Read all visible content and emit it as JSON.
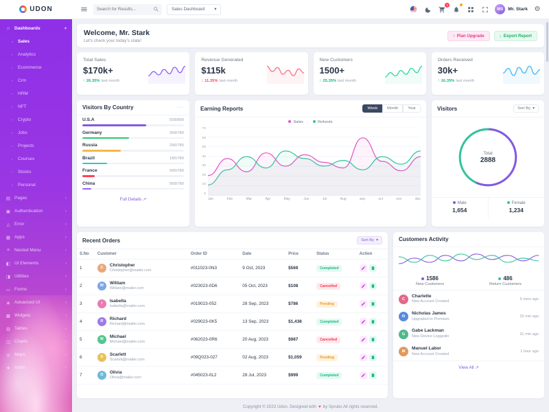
{
  "app": {
    "logo": "UDON"
  },
  "icons": {
    "sort_chevron": "▾",
    "more": "···",
    "link_arrow": "↗",
    "up": "↑",
    "down": "↓",
    "heart": "♥",
    "gear": "⚙"
  },
  "header": {
    "search_placeholder": "Search for Results...",
    "dashboard_select": "Sales Dashboard",
    "cart_badge": "1",
    "user_name": "Mr. Stark",
    "user_initials": "MS"
  },
  "sidebar": {
    "items": [
      {
        "label": "Dashboards",
        "glyph": "⌂",
        "type": "parent",
        "active": true,
        "expanded": true
      },
      {
        "label": "Sales",
        "glyph": "▫",
        "type": "sub",
        "active": true
      },
      {
        "label": "Analytics",
        "glyph": "▫",
        "type": "sub"
      },
      {
        "label": "Ecommerce",
        "glyph": "▫",
        "type": "sub"
      },
      {
        "label": "Crm",
        "glyph": "▫",
        "type": "sub"
      },
      {
        "label": "HRM",
        "glyph": "▫",
        "type": "sub"
      },
      {
        "label": "NFT",
        "glyph": "▫",
        "type": "sub"
      },
      {
        "label": "Crypto",
        "glyph": "▫",
        "type": "sub"
      },
      {
        "label": "Jobs",
        "glyph": "▫",
        "type": "sub"
      },
      {
        "label": "Projects",
        "glyph": "▫",
        "type": "sub"
      },
      {
        "label": "Courses",
        "glyph": "▫",
        "type": "sub"
      },
      {
        "label": "Stocks",
        "glyph": "▫",
        "type": "sub"
      },
      {
        "label": "Personal",
        "glyph": "▫",
        "type": "sub"
      },
      {
        "label": "Pages",
        "glyph": "▤",
        "type": "parent"
      },
      {
        "label": "Authentication",
        "glyph": "▣",
        "type": "parent"
      },
      {
        "label": "Error",
        "glyph": "△",
        "type": "parent"
      },
      {
        "label": "Apps",
        "glyph": "▦",
        "type": "parent"
      },
      {
        "label": "Nested Menu",
        "glyph": "≡",
        "type": "parent"
      },
      {
        "label": "UI Elements",
        "glyph": "◧",
        "type": "parent"
      },
      {
        "label": "Utilities",
        "glyph": "◨",
        "type": "parent"
      },
      {
        "label": "Forms",
        "glyph": "▭",
        "type": "parent"
      },
      {
        "label": "Advanced UI",
        "glyph": "◈",
        "type": "parent"
      },
      {
        "label": "Widgets",
        "glyph": "▩",
        "type": "parent"
      },
      {
        "label": "Tables",
        "glyph": "▥",
        "type": "parent"
      },
      {
        "label": "Charts",
        "glyph": "◫",
        "type": "parent"
      },
      {
        "label": "Maps",
        "glyph": "◎",
        "type": "parent"
      },
      {
        "label": "Icons",
        "glyph": "★",
        "type": "parent"
      }
    ]
  },
  "welcome": {
    "title": "Welcome, Mr. Stark",
    "subtitle": "Let's check your today's state!",
    "plan_upgrade": "Plan Upgrade",
    "export_report": "Export Report"
  },
  "stats": [
    {
      "title": "Total Sales",
      "value": "$170k+",
      "dir": "up",
      "change": "26.35%",
      "note": "last month",
      "spark_id": "sparkline-total-sales"
    },
    {
      "title": "Revenue Generated",
      "value": "$115k",
      "dir": "down",
      "change": "11.35%",
      "note": "last month",
      "spark_id": "sparkline-revenue-generated"
    },
    {
      "title": "New Customers",
      "value": "1500+",
      "dir": "up",
      "change": "25.35%",
      "note": "last month",
      "spark_id": "sparkline-new-customers"
    },
    {
      "title": "Orders Received",
      "value": "30k+",
      "dir": "up",
      "change": "16.35%",
      "note": "last month",
      "spark_id": "sparkline-orders-received"
    }
  ],
  "visitors_by_country": {
    "title": "Visitors By Country",
    "items": [
      {
        "name": "U.S.A",
        "value": "558/890",
        "pct": 63,
        "color": "#845adf"
      },
      {
        "name": "Germany",
        "value": "358/780",
        "pct": 46,
        "color": "#28c76f"
      },
      {
        "name": "Russia",
        "value": "296/780",
        "pct": 38,
        "color": "#f5b849"
      },
      {
        "name": "Brazil",
        "value": "185/780",
        "pct": 24,
        "color": "#2bc6d8"
      },
      {
        "name": "France",
        "value": "095/780",
        "pct": 12,
        "color": "#fb4255"
      },
      {
        "name": "China",
        "value": "068/780",
        "pct": 9,
        "color": "#9461fb"
      }
    ],
    "footer_link": "Full Details"
  },
  "earning_reports": {
    "title": "Earning Reports",
    "tabs": [
      "Week",
      "Month",
      "Year"
    ],
    "active_tab": "Week"
  },
  "visitors": {
    "title": "Visitors",
    "sort_by": "Sort By"
  },
  "recent_orders": {
    "title": "Recent Orders",
    "sort_by": "Sort By",
    "columns": [
      "S.No",
      "Customer",
      "Order ID",
      "Date",
      "Price",
      "Status",
      "Action"
    ],
    "rows": [
      {
        "sno": "1",
        "name": "Christopher",
        "email": "Christopher@mailer.com",
        "order_id": "#011023-0N3",
        "date": "9 Oct, 2023",
        "price": "$569",
        "status": "Completed"
      },
      {
        "sno": "2",
        "name": "William",
        "email": "William@mailer.com",
        "order_id": "#023023-0D6",
        "date": "05 Oct, 2023",
        "price": "$108",
        "status": "Cancelled"
      },
      {
        "sno": "3",
        "name": "Isabella",
        "email": "Isabella@mailer.com",
        "order_id": "#019023-052",
        "date": "28 Sep, 2023",
        "price": "$786",
        "status": "Pending"
      },
      {
        "sno": "4",
        "name": "Richard",
        "email": "Richard@mailer.com",
        "order_id": "#029023-0K5",
        "date": "13 Sep, 2023",
        "price": "$1,438",
        "status": "Completed"
      },
      {
        "sno": "5",
        "name": "Michael",
        "email": "Michael@mailer.com",
        "order_id": "#062023-0R6",
        "date": "20 Aug, 2023",
        "price": "$987",
        "status": "Cancelled"
      },
      {
        "sno": "6",
        "name": "Scarlett",
        "email": "Scarlett@mailer.com",
        "order_id": "#09Q023-027",
        "date": "02 Aug, 2023",
        "price": "$1,059",
        "status": "Pending"
      },
      {
        "sno": "7",
        "name": "Olivia",
        "email": "Olivia@mailer.com",
        "order_id": "#045023-0L2",
        "date": "28 Jul, 2023",
        "price": "$999",
        "status": "Completed"
      }
    ]
  },
  "customers_activity": {
    "title": "Customers Activity",
    "legend": [
      {
        "value": "1586",
        "label": "New Customers",
        "color": "#845adf"
      },
      {
        "value": "486",
        "label": "Return Customers",
        "color": "#35c39c"
      }
    ],
    "items": [
      {
        "name": "Charlette",
        "action": "New Account Created",
        "time": "5 mins ago"
      },
      {
        "name": "Nicholas James",
        "action": "Upgraded to Premium",
        "time": "15 min ago"
      },
      {
        "name": "Gabe Lackman",
        "action": "New Device Loggedin",
        "time": "31 min ago"
      },
      {
        "name": "Manuel Labor",
        "action": "New Account Created",
        "time": "1 hour ago"
      }
    ],
    "view_all": "View All"
  },
  "footer": {
    "left": "Copyright © 2023 Udon. Designed with",
    "heart": "♥",
    "right": "by Spruko All rights reserved."
  },
  "colors": {
    "primary": "#845adf",
    "success": "#28c76f",
    "danger": "#fb4255",
    "warning": "#f5b849",
    "pink": "#e354c8",
    "teal": "#35c39c"
  },
  "chart_data": [
    {
      "id": "sparkline-total-sales",
      "type": "line",
      "values": [
        12,
        20,
        14,
        24,
        16,
        28,
        18,
        30
      ],
      "color": "#8f5ff2"
    },
    {
      "id": "sparkline-revenue-generated",
      "type": "line",
      "values": [
        24,
        16,
        22,
        12,
        18,
        10,
        20,
        14
      ],
      "color": "#fb7185"
    },
    {
      "id": "sparkline-new-customers",
      "type": "line",
      "values": [
        10,
        18,
        12,
        22,
        15,
        26,
        18,
        30
      ],
      "color": "#2fd8a0"
    },
    {
      "id": "sparkline-orders-received",
      "type": "line",
      "values": [
        16,
        24,
        12,
        26,
        16,
        28,
        14,
        22
      ],
      "color": "#46b6f7"
    },
    {
      "id": "earning-reports",
      "type": "line",
      "title": "Earning Reports",
      "x": [
        "Jan",
        "Feb",
        "Mar",
        "Apr",
        "May",
        "Jun",
        "Jul",
        "Aug",
        "sep",
        "oct",
        "nov",
        "dec"
      ],
      "ylim": [
        0,
        70
      ],
      "yticks": [
        0,
        10,
        20,
        30,
        40,
        50,
        60,
        70
      ],
      "grid": true,
      "legend_position": "top",
      "series": [
        {
          "name": "Sales",
          "color": "#e354c8",
          "values": [
            20,
            38,
            24,
            44,
            30,
            42,
            34,
            28,
            60,
            35,
            25,
            40
          ]
        },
        {
          "name": "Refunds",
          "color": "#35c39c",
          "values": [
            10,
            26,
            40,
            28,
            46,
            38,
            30,
            36,
            26,
            40,
            32,
            46
          ]
        }
      ]
    },
    {
      "id": "visitors-donut",
      "type": "pie",
      "center_label": "Total",
      "center_value": "2888",
      "slices": [
        {
          "name": "Male",
          "value": 1654,
          "display": "1,654",
          "color": "#845adf"
        },
        {
          "name": "Female",
          "value": 1234,
          "display": "1,234",
          "color": "#35c39c"
        }
      ]
    },
    {
      "id": "customers-activity-mini",
      "type": "line",
      "series": [
        {
          "name": "New Customers",
          "color": "#845adf",
          "values": [
            6,
            10,
            7,
            12,
            8,
            13,
            9,
            12,
            8,
            12
          ]
        },
        {
          "name": "Return Customers",
          "color": "#35c39c",
          "values": [
            11,
            7,
            12,
            8,
            13,
            9,
            12,
            7,
            10,
            8
          ]
        }
      ]
    }
  ]
}
